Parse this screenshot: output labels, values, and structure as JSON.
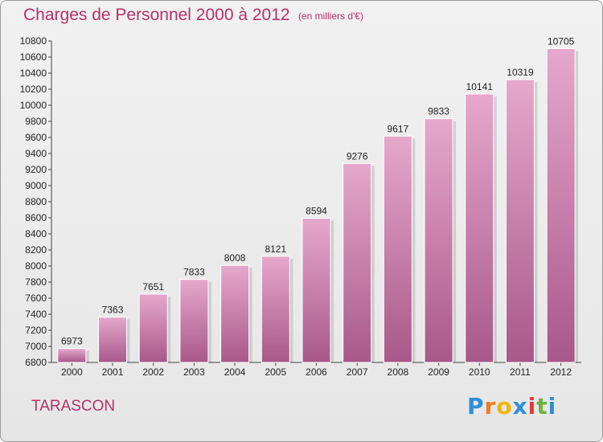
{
  "title": "Charges de Personnel 2000 à 2012",
  "subtitle": "(en milliers d'€)",
  "city": "TARASCON",
  "logo": {
    "letters": [
      "P",
      "r",
      "o",
      "x",
      "i",
      "t",
      "i"
    ],
    "colors": [
      "#2f8fd6",
      "#f07a1a",
      "#f0b400",
      "#2f8fd6",
      "#e03a3a",
      "#6cb43a",
      "#2f8fd6"
    ]
  },
  "colors": {
    "bar_top": "#e6a8cc",
    "bar_bottom": "#a8588a",
    "accent": "#b5306a"
  },
  "chart_data": {
    "type": "bar",
    "categories": [
      "2000",
      "2001",
      "2002",
      "2003",
      "2004",
      "2005",
      "2006",
      "2007",
      "2008",
      "2009",
      "2010",
      "2011",
      "2012"
    ],
    "values": [
      6973,
      7363,
      7651,
      7833,
      8008,
      8121,
      8594,
      9276,
      9617,
      9833,
      10141,
      10319,
      10705
    ],
    "ylim": [
      6800,
      10800
    ],
    "yticks": [
      6800,
      7000,
      7200,
      7400,
      7600,
      7800,
      8000,
      8200,
      8400,
      8600,
      8800,
      9000,
      9200,
      9400,
      9600,
      9800,
      10000,
      10200,
      10400,
      10600,
      10800
    ],
    "grid": false
  }
}
